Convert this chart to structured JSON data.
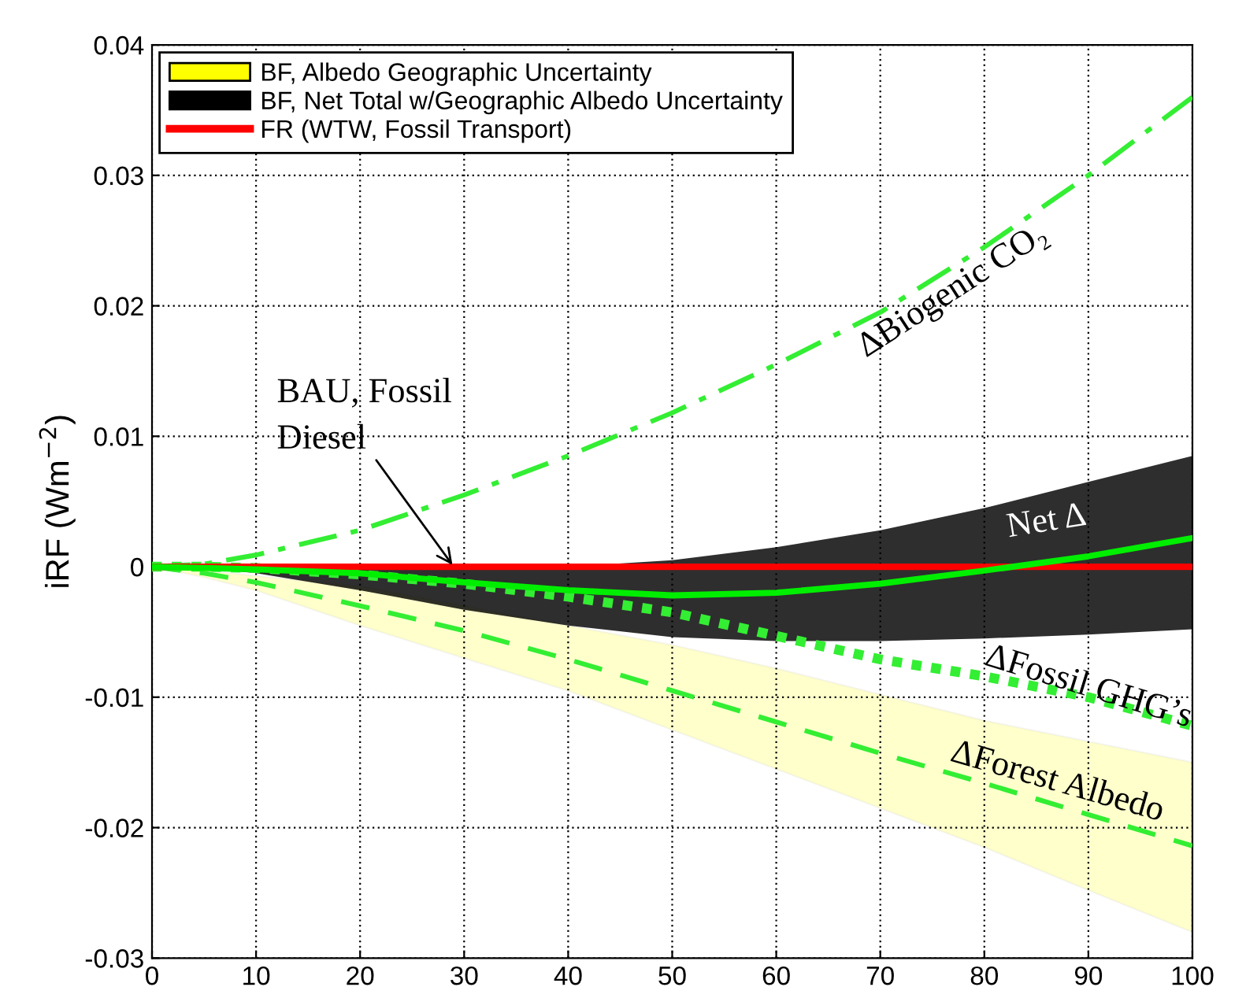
{
  "chart_data": {
    "type": "line",
    "ylabel": "iRF (Wm$^{−2}$)",
    "x": [
      0,
      5,
      10,
      20,
      30,
      40,
      50,
      60,
      70,
      80,
      90,
      100
    ],
    "series": [
      {
        "name": "BF, Albedo Geographic Uncertainty",
        "type": "area",
        "color": "#ffff00",
        "values": [
          null,
          null,
          null,
          null,
          null,
          null,
          null,
          null,
          null,
          null,
          null,
          null
        ],
        "upper": [
          0,
          -0.0003,
          -0.0007,
          -0.0015,
          -0.003,
          -0.0045,
          -0.006,
          -0.0078,
          -0.0098,
          -0.0118,
          -0.0134,
          -0.015
        ],
        "lower": [
          0,
          -0.0008,
          -0.0018,
          -0.0045,
          -0.007,
          -0.0095,
          -0.0125,
          -0.0155,
          -0.0185,
          -0.0215,
          -0.0248,
          -0.028
        ]
      },
      {
        "name": "BF, Net Total w/Geographic Albedo Uncertainty",
        "type": "area",
        "color": "#000000",
        "values": [
          null,
          null,
          null,
          null,
          null,
          null,
          null,
          null,
          null,
          null,
          null,
          null
        ],
        "upper": [
          0,
          0,
          0,
          0,
          0,
          0,
          0.0005,
          0.0015,
          0.0028,
          0.0045,
          0.0065,
          0.0085
        ],
        "lower": [
          0,
          -0.0001,
          -0.0005,
          -0.0018,
          -0.0033,
          -0.0045,
          -0.0054,
          -0.0057,
          -0.0057,
          -0.0055,
          -0.0052,
          -0.0048
        ]
      },
      {
        "color": "#33ee33",
        "line_style": "dashdot",
        "values": [
          0,
          0.0002,
          0.0009,
          0.0028,
          0.0055,
          0.0085,
          0.0118,
          0.0155,
          0.0195,
          0.0245,
          0.03,
          0.036
        ]
      },
      {
        "color": "#33ee33",
        "line_style": "dotted",
        "values": [
          0,
          0,
          -0.0001,
          -0.0006,
          -0.0013,
          -0.0023,
          -0.0035,
          -0.0053,
          -0.0071,
          -0.0084,
          -0.01,
          -0.0122
        ]
      },
      {
        "color": "#33ee33",
        "line_style": "dashed",
        "values": [
          0,
          -0.0005,
          -0.0012,
          -0.003,
          -0.0049,
          -0.0071,
          -0.0095,
          -0.0119,
          -0.0143,
          -0.0166,
          -0.019,
          -0.0214
        ]
      },
      {
        "name": "FR (WTW, Fossil Transport)",
        "color": "#ff0000",
        "values": [
          0,
          0,
          0,
          0,
          0,
          0,
          0,
          0,
          0,
          0,
          0,
          0
        ]
      },
      {
        "color": "#00ee00",
        "line_style": "solid",
        "values": [
          0,
          -0.0001,
          -0.0002,
          -0.0005,
          -0.0012,
          -0.0018,
          -0.0022,
          -0.002,
          -0.0013,
          -0.0003,
          0.0008,
          0.0022
        ]
      }
    ],
    "annotations": [
      "ΔBiogenic CO₂",
      "Net Δ",
      "ΔFossil GHG’s",
      "ΔForest Albedo",
      {
        "text": "BAU, Fossil\nDiesel",
        "x": 29,
        "y": 0
      }
    ],
    "xlim": [
      0,
      100
    ],
    "ylim": [
      -0.03,
      0.04
    ],
    "xticks": [
      0,
      10,
      20,
      30,
      40,
      50,
      60,
      70,
      80,
      90,
      100
    ],
    "yticks": [
      -0.03,
      -0.02,
      -0.01,
      0,
      0.01,
      0.02,
      0.03,
      0.04
    ],
    "grid": true,
    "legend": "top left"
  }
}
